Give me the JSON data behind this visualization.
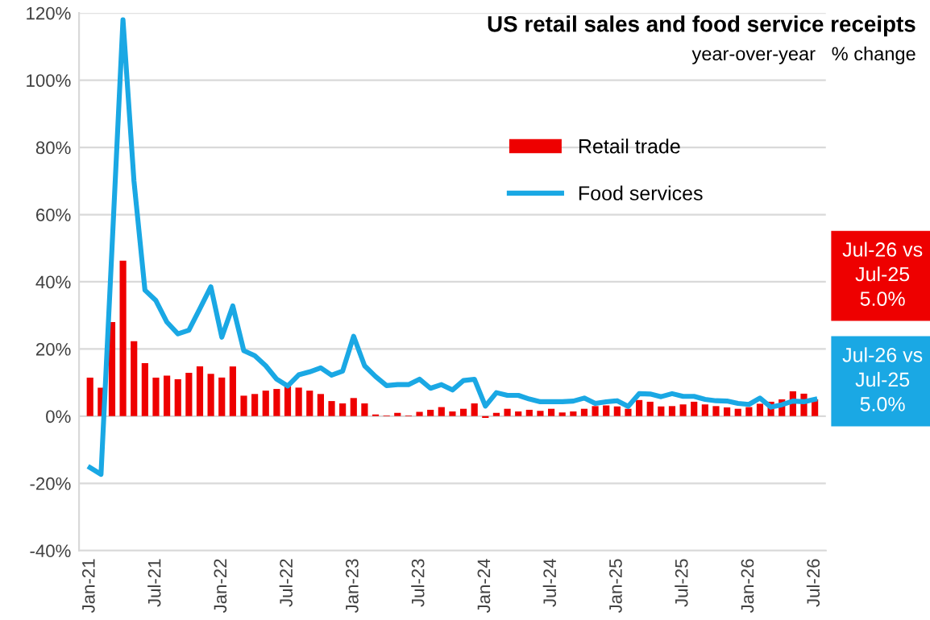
{
  "chart_data": {
    "type": "bar",
    "title": "US retail sales and food service receipts",
    "subtitle": "year-over-year   % change",
    "categories": [
      "Jan-21",
      null,
      null,
      null,
      null,
      null,
      "Jul-21",
      null,
      null,
      null,
      null,
      null,
      "Jan-22",
      null,
      null,
      null,
      null,
      null,
      "Jul-22",
      null,
      null,
      null,
      null,
      null,
      "Jan-23",
      null,
      null,
      null,
      null,
      null,
      "Jul-23",
      null,
      null,
      null,
      null,
      null,
      "Jan-24",
      null,
      null,
      null,
      null,
      null,
      "Jul-24",
      null,
      null,
      null,
      null,
      null,
      "Jan-25",
      null,
      null,
      null,
      null,
      null,
      "Jul-25",
      null,
      null,
      null,
      null,
      null,
      "Jan-26",
      null,
      null,
      null,
      null,
      null,
      "Jul-26"
    ],
    "series": [
      {
        "name": "Retail trade",
        "color": "#ee0000",
        "values": [
          11.5,
          8.5,
          28,
          46.3,
          22.3,
          15.8,
          11.5,
          12.1,
          11,
          12.9,
          14.8,
          12.6,
          11.5,
          14.8,
          6.1,
          6.6,
          7.6,
          8.1,
          8.9,
          8.5,
          7.6,
          6.6,
          4.5,
          3.8,
          5.4,
          3.8,
          0.5,
          0.2,
          1.0,
          0.2,
          1.3,
          1.9,
          2.7,
          1.4,
          2.2,
          3.8,
          -0.5,
          1.0,
          2.2,
          1.4,
          1.9,
          1.6,
          2.2,
          1.1,
          1.4,
          2.2,
          3.0,
          3.2,
          2.9,
          2.2,
          4.8,
          4.3,
          2.9,
          3.0,
          3.5,
          4.3,
          3.5,
          3.0,
          2.6,
          2.2,
          2.7,
          3.7,
          4.3,
          5.0,
          7.4,
          6.7,
          5.0
        ]
      },
      {
        "name": "Food services",
        "type": "line",
        "color": "#1aa8e4",
        "values": [
          -15.3,
          -17.3,
          50,
          118,
          70,
          37.5,
          34.4,
          28,
          24.5,
          25.6,
          32,
          38.5,
          23.5,
          32.8,
          19.5,
          18,
          15,
          11,
          9,
          12.3,
          13.2,
          14.4,
          12.2,
          13.4,
          23.8,
          15,
          11.8,
          9.1,
          9.4,
          9.4,
          11,
          8.3,
          9.4,
          7.8,
          10.6,
          11,
          3,
          7,
          6.2,
          6.2,
          5.1,
          4.3,
          4.3,
          4.3,
          4.5,
          5.4,
          3.8,
          4.3,
          4.6,
          2.9,
          6.7,
          6.6,
          5.8,
          6.7,
          5.9,
          5.9,
          5.0,
          4.6,
          4.5,
          3.8,
          3.5,
          5.4,
          2.7,
          3.4,
          4.5,
          4.3,
          5.0
        ]
      }
    ],
    "ylim": [
      -40,
      120
    ],
    "yticks": [
      {
        "value": -40,
        "label": "-40%"
      },
      {
        "value": -20,
        "label": "-20%"
      },
      {
        "value": 0,
        "label": "0%"
      },
      {
        "value": 20,
        "label": "20%"
      },
      {
        "value": 40,
        "label": "40%"
      },
      {
        "value": 60,
        "label": "60%"
      },
      {
        "value": 80,
        "label": "80%"
      },
      {
        "value": 100,
        "label": "100%"
      },
      {
        "value": 120,
        "label": "120%"
      }
    ],
    "grid": "y",
    "legend": "upper right",
    "marker": "none",
    "line_style": "solid",
    "annotations": [
      "Jul-26 vs\nJul-25\n5.0%",
      "Jul-26 vs\nJul-25\n5.0%"
    ]
  }
}
